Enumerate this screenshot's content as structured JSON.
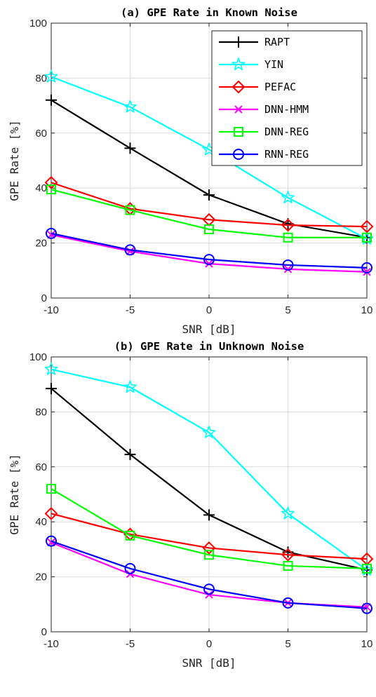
{
  "chart_data": [
    {
      "type": "line",
      "title": "(a) GPE Rate in Known Noise",
      "xlabel": "SNR [dB]",
      "ylabel": "GPE Rate [%]",
      "x": [
        -10,
        -5,
        0,
        5,
        10
      ],
      "xticks": [
        "-10",
        "-5",
        "0",
        "5",
        "10"
      ],
      "yticks": [
        "0",
        "20",
        "40",
        "60",
        "80",
        "100"
      ],
      "xlim": [
        -10,
        10
      ],
      "ylim": [
        0,
        100
      ],
      "grid": true,
      "legend_position": "top-right",
      "series": [
        {
          "name": "RAPT",
          "values": [
            72.0,
            54.5,
            37.5,
            27.0,
            22.0
          ],
          "color": "#000000",
          "marker": "plus"
        },
        {
          "name": "YIN",
          "values": [
            80.5,
            69.5,
            54.0,
            36.5,
            21.5
          ],
          "color": "#00ffff",
          "marker": "star"
        },
        {
          "name": "PEFAC",
          "values": [
            42.0,
            32.5,
            28.5,
            26.5,
            26.0
          ],
          "color": "#ff0000",
          "marker": "diamond"
        },
        {
          "name": "DNN-HMM",
          "values": [
            23.0,
            17.0,
            12.5,
            10.5,
            9.5
          ],
          "color": "#ff00ff",
          "marker": "x"
        },
        {
          "name": "DNN-REG",
          "values": [
            39.5,
            32.0,
            25.0,
            22.0,
            22.0
          ],
          "color": "#00ff00",
          "marker": "square"
        },
        {
          "name": "RNN-REG",
          "values": [
            23.5,
            17.5,
            14.0,
            12.0,
            11.0
          ],
          "color": "#0000ff",
          "marker": "circle"
        }
      ]
    },
    {
      "type": "line",
      "title": "(b) GPE Rate in Unknown Noise",
      "xlabel": "SNR [dB]",
      "ylabel": "GPE Rate [%]",
      "x": [
        -10,
        -5,
        0,
        5,
        10
      ],
      "xticks": [
        "-10",
        "-5",
        "0",
        "5",
        "10"
      ],
      "yticks": [
        "0",
        "20",
        "40",
        "60",
        "80",
        "100"
      ],
      "xlim": [
        -10,
        10
      ],
      "ylim": [
        0,
        100
      ],
      "grid": true,
      "legend_position": "none",
      "series": [
        {
          "name": "RAPT",
          "values": [
            88.5,
            64.5,
            42.5,
            29.0,
            22.5
          ],
          "color": "#000000",
          "marker": "plus"
        },
        {
          "name": "YIN",
          "values": [
            95.5,
            89.0,
            72.5,
            43.0,
            22.5
          ],
          "color": "#00ffff",
          "marker": "star"
        },
        {
          "name": "PEFAC",
          "values": [
            43.0,
            35.5,
            30.5,
            28.0,
            26.5
          ],
          "color": "#ff0000",
          "marker": "diamond"
        },
        {
          "name": "DNN-HMM",
          "values": [
            32.5,
            21.0,
            13.5,
            10.5,
            9.0
          ],
          "color": "#ff00ff",
          "marker": "x"
        },
        {
          "name": "DNN-REG",
          "values": [
            52.0,
            35.0,
            28.0,
            24.0,
            23.0
          ],
          "color": "#00ff00",
          "marker": "square"
        },
        {
          "name": "RNN-REG",
          "values": [
            33.0,
            23.0,
            15.5,
            10.5,
            8.5
          ],
          "color": "#0000ff",
          "marker": "circle"
        }
      ]
    }
  ]
}
